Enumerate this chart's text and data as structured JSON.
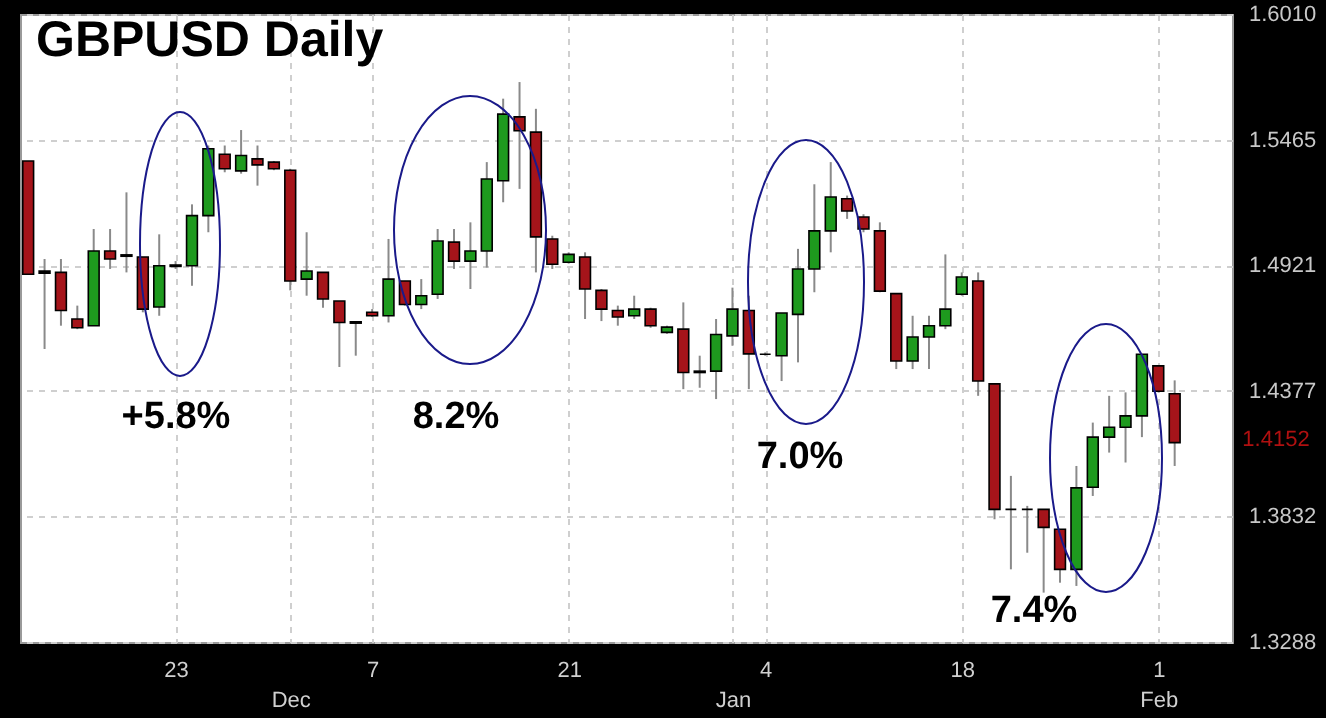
{
  "chart_data": {
    "type": "candlestick",
    "title": "GBPUSD Daily",
    "categories": [
      null,
      null,
      null,
      null,
      null,
      null,
      null,
      null,
      null,
      "23",
      null,
      null,
      null,
      null,
      null,
      null,
      "Dec",
      null,
      null,
      null,
      null,
      "7",
      null,
      null,
      null,
      null,
      null,
      null,
      null,
      null,
      null,
      null,
      null,
      "21",
      null,
      null,
      null,
      null,
      null,
      null,
      null,
      null,
      null,
      "Jan",
      null,
      "4",
      null,
      null,
      null,
      null,
      null,
      null,
      null,
      null,
      null,
      null,
      null,
      "18",
      null,
      null,
      null,
      null,
      null,
      null,
      null,
      null,
      null,
      null,
      null,
      "1\nFeb",
      null
    ],
    "ohlc": [
      [
        1.5373,
        1.5373,
        1.4882,
        1.4882
      ],
      [
        1.4896,
        1.4948,
        1.4558,
        1.4887
      ],
      [
        1.489,
        1.4948,
        1.4659,
        1.4725
      ],
      [
        1.4688,
        1.4746,
        1.4644,
        1.465
      ],
      [
        1.4659,
        1.5078,
        1.4659,
        1.4983
      ],
      [
        1.4983,
        1.5078,
        1.4905,
        1.4948
      ],
      [
        1.4966,
        1.5237,
        1.489,
        1.496
      ],
      [
        1.4957,
        1.4957,
        1.4717,
        1.4731
      ],
      [
        1.474,
        1.5055,
        1.4702,
        1.4919
      ],
      [
        1.4916,
        1.4939,
        1.4905,
        1.4922
      ],
      [
        1.4919,
        1.5185,
        1.4832,
        1.5136
      ],
      [
        1.5136,
        1.544,
        1.5064,
        1.5426
      ],
      [
        1.5402,
        1.544,
        1.5324,
        1.5339
      ],
      [
        1.533,
        1.5507,
        1.5318,
        1.5397
      ],
      [
        1.5382,
        1.544,
        1.5266,
        1.5356
      ],
      [
        1.5368,
        1.5373,
        1.5333,
        1.5339
      ],
      [
        1.5333,
        1.5339,
        1.4812,
        1.4853
      ],
      [
        1.4861,
        1.5064,
        1.4789,
        1.4896
      ],
      [
        1.489,
        1.489,
        1.4737,
        1.4775
      ],
      [
        1.4766,
        1.4766,
        1.448,
        1.4673
      ],
      [
        1.4676,
        1.4679,
        1.4529,
        1.467
      ],
      [
        1.4717,
        1.4731,
        1.4697,
        1.4702
      ],
      [
        1.4702,
        1.5035,
        1.4673,
        1.4861
      ],
      [
        1.4853,
        1.4853,
        1.4746,
        1.4751
      ],
      [
        1.4751,
        1.4861,
        1.4731,
        1.4789
      ],
      [
        1.4795,
        1.5078,
        1.4775,
        1.5026
      ],
      [
        1.5021,
        1.5078,
        1.4905,
        1.4939
      ],
      [
        1.4939,
        1.5107,
        1.4818,
        1.4983
      ],
      [
        1.4983,
        1.5368,
        1.4911,
        1.5295
      ],
      [
        1.5287,
        1.5643,
        1.5194,
        1.5576
      ],
      [
        1.5564,
        1.5715,
        1.5252,
        1.5504
      ],
      [
        1.5498,
        1.5599,
        1.489,
        1.5044
      ],
      [
        1.5035,
        1.5049,
        1.4905,
        1.4925
      ],
      [
        1.4934,
        1.4977,
        1.4928,
        1.4968
      ],
      [
        1.4957,
        1.4977,
        1.4688,
        1.4818
      ],
      [
        1.4812,
        1.4818,
        1.4679,
        1.4731
      ],
      [
        1.4725,
        1.4746,
        1.4659,
        1.4697
      ],
      [
        1.4702,
        1.4789,
        1.4688,
        1.4731
      ],
      [
        1.4731,
        1.4737,
        1.465,
        1.4659
      ],
      [
        1.463,
        1.4659,
        1.4624,
        1.4653
      ],
      [
        1.4644,
        1.476,
        1.4384,
        1.4456
      ],
      [
        1.4456,
        1.4529,
        1.439,
        1.4462
      ],
      [
        1.4462,
        1.4688,
        1.4341,
        1.4621
      ],
      [
        1.4615,
        1.4824,
        1.4572,
        1.4731
      ],
      [
        1.4725,
        1.4789,
        1.4384,
        1.4537
      ],
      [
        1.4535,
        1.4543,
        1.4529,
        1.4535
      ],
      [
        1.4529,
        1.4714,
        1.4419,
        1.4714
      ],
      [
        1.4708,
        1.4992,
        1.45,
        1.4905
      ],
      [
        1.4905,
        1.5272,
        1.4804,
        1.507
      ],
      [
        1.507,
        1.5368,
        1.4977,
        1.5217
      ],
      [
        1.5209,
        1.5223,
        1.5122,
        1.5156
      ],
      [
        1.513,
        1.5142,
        1.5064,
        1.5078
      ],
      [
        1.507,
        1.5107,
        1.4804,
        1.4809
      ],
      [
        1.4798,
        1.4798,
        1.4471,
        1.4506
      ],
      [
        1.4506,
        1.4702,
        1.4471,
        1.461
      ],
      [
        1.461,
        1.4702,
        1.4471,
        1.4659
      ],
      [
        1.4659,
        1.4968,
        1.4644,
        1.4731
      ],
      [
        1.4795,
        1.489,
        1.4789,
        1.487
      ],
      [
        1.4853,
        1.489,
        1.4355,
        1.4419
      ],
      [
        1.4407,
        1.4407,
        1.382,
        1.3863
      ],
      [
        1.3863,
        1.4008,
        1.3603,
        1.3863
      ],
      [
        1.3863,
        1.3878,
        1.3675,
        1.3863
      ],
      [
        1.3863,
        1.3863,
        1.3502,
        1.3785
      ],
      [
        1.3777,
        1.3777,
        1.3545,
        1.3603
      ],
      [
        1.3603,
        1.4051,
        1.3531,
        1.3956
      ],
      [
        1.3959,
        1.4239,
        1.3921,
        1.4176
      ],
      [
        1.4176,
        1.4355,
        1.4109,
        1.4219
      ],
      [
        1.4219,
        1.437,
        1.4066,
        1.4268
      ],
      [
        1.4268,
        1.4535,
        1.4176,
        1.4535
      ],
      [
        1.4485,
        1.4485,
        1.437,
        1.4375
      ],
      [
        1.4364,
        1.4422,
        1.4051,
        1.4152
      ]
    ],
    "colors": [
      "#a5141a",
      "#000000",
      "#a5141a",
      "#a5141a",
      "#1e9a1e",
      "#a5141a",
      "#000000",
      "#a5141a",
      "#1e9a1e",
      "#000000",
      "#1e9a1e",
      "#1e9a1e",
      "#a5141a",
      "#1e9a1e",
      "#a5141a",
      "#a5141a",
      "#a5141a",
      "#1e9a1e",
      "#a5141a",
      "#a5141a",
      "#000000",
      "#a5141a",
      "#1e9a1e",
      "#a5141a",
      "#1e9a1e",
      "#1e9a1e",
      "#a5141a",
      "#1e9a1e",
      "#1e9a1e",
      "#1e9a1e",
      "#a5141a",
      "#a5141a",
      "#a5141a",
      "#1e9a1e",
      "#a5141a",
      "#a5141a",
      "#a5141a",
      "#1e9a1e",
      "#a5141a",
      "#1e9a1e",
      "#a5141a",
      "#000000",
      "#1e9a1e",
      "#1e9a1e",
      "#a5141a",
      "#000000",
      "#1e9a1e",
      "#1e9a1e",
      "#1e9a1e",
      "#1e9a1e",
      "#a5141a",
      "#a5141a",
      "#a5141a",
      "#a5141a",
      "#1e9a1e",
      "#1e9a1e",
      "#1e9a1e",
      "#1e9a1e",
      "#a5141a",
      "#a5141a",
      "#000000",
      "#000000",
      "#a5141a",
      "#a5141a",
      "#1e9a1e",
      "#1e9a1e",
      "#1e9a1e",
      "#1e9a1e",
      "#1e9a1e",
      "#a5141a",
      "#a5141a"
    ],
    "ylim": [
      1.3288,
      1.601
    ],
    "yticks": [
      1.3288,
      1.3832,
      1.4377,
      1.4921,
      1.5465,
      {
        "value": 1.601,
        "label": "1.6010"
      }
    ],
    "grid": true,
    "annotations": [
      "+5.8%",
      "8.2%",
      "7.0%",
      "7.4%",
      "1.4152"
    ]
  }
}
